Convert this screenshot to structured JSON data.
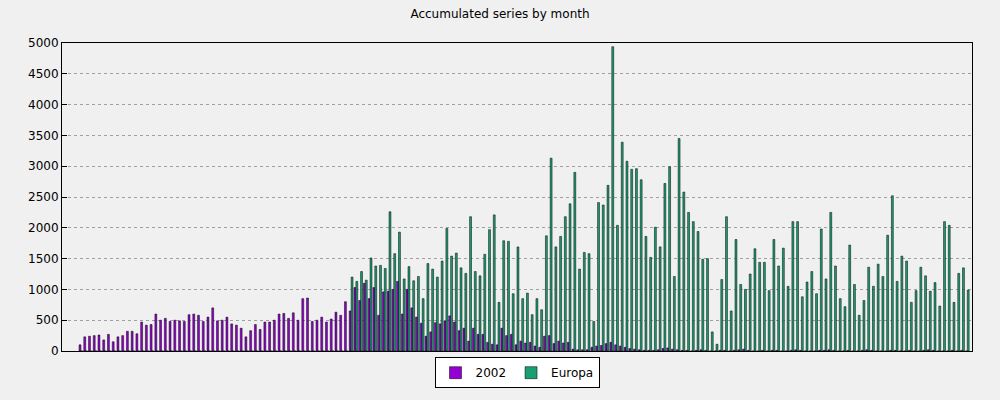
{
  "chart_data": {
    "type": "bar",
    "title": "Accumulated series by month",
    "categories": [
      null,
      null,
      null,
      null,
      null,
      null,
      null,
      null,
      null,
      null,
      null,
      null,
      null,
      null,
      null,
      null,
      null,
      null,
      null,
      null,
      null,
      null,
      null,
      null,
      null,
      null,
      null,
      null,
      null,
      null,
      null,
      null,
      null,
      null,
      null,
      null,
      null,
      null,
      null,
      null,
      null,
      null,
      null,
      null,
      null,
      null,
      null,
      null,
      null,
      null,
      null,
      null,
      null,
      null,
      null,
      null,
      null,
      null,
      null,
      null,
      null,
      null,
      null,
      null,
      null,
      null,
      null,
      null,
      null,
      null,
      null,
      null,
      null,
      null,
      null,
      null,
      null,
      null,
      null,
      null,
      null,
      null,
      null,
      null,
      null,
      null,
      null,
      null,
      null,
      null,
      null,
      null,
      null,
      null,
      null,
      null,
      null,
      null,
      null,
      null,
      null,
      null,
      null,
      null,
      null,
      null,
      null,
      null,
      null,
      null,
      null,
      null,
      null,
      null,
      null,
      null,
      null,
      null,
      null,
      null,
      null,
      null,
      null,
      null,
      null,
      null,
      null,
      null,
      null,
      null,
      null,
      null,
      null,
      null,
      null,
      null,
      null,
      null,
      null,
      null,
      null,
      null,
      null,
      null,
      null,
      null,
      null,
      null,
      null,
      null,
      null,
      null,
      null,
      null,
      null,
      null,
      null,
      null,
      null,
      null,
      null,
      null,
      null,
      null,
      null,
      null,
      null,
      null,
      null,
      null,
      null,
      null,
      null,
      null,
      null,
      null,
      null,
      null,
      null,
      null,
      null,
      null,
      null,
      null,
      null,
      null,
      null,
      null
    ],
    "series": [
      {
        "name": "2002",
        "color": "#9400d3",
        "values": [
          100,
          230,
          240,
          250,
          260,
          180,
          270,
          150,
          230,
          250,
          320,
          320,
          280,
          470,
          420,
          430,
          600,
          500,
          530,
          480,
          500,
          490,
          480,
          590,
          600,
          580,
          480,
          550,
          700,
          490,
          500,
          550,
          440,
          420,
          370,
          230,
          330,
          430,
          350,
          470,
          470,
          500,
          600,
          610,
          530,
          620,
          500,
          850,
          860,
          480,
          500,
          550,
          470,
          520,
          630,
          580,
          800,
          650,
          1030,
          820,
          1100,
          850,
          1030,
          580,
          960,
          970,
          1000,
          1130,
          600,
          1000,
          700,
          550,
          450,
          240,
          310,
          460,
          440,
          490,
          570,
          470,
          330,
          370,
          160,
          370,
          270,
          270,
          140,
          110,
          100,
          370,
          250,
          270,
          100,
          160,
          130,
          140,
          80,
          60,
          240,
          250,
          120,
          160,
          130,
          140,
          30,
          20,
          20,
          20,
          60,
          80,
          90,
          120,
          140,
          100,
          80,
          60,
          40,
          30,
          20,
          10,
          10,
          10,
          20,
          40,
          50,
          30,
          20,
          10,
          10,
          0,
          10,
          20,
          10,
          0,
          0,
          10,
          10,
          0,
          10,
          20,
          30,
          10,
          0,
          0,
          10,
          0,
          10,
          10,
          0,
          0,
          10,
          20,
          10,
          0,
          0,
          0,
          10,
          10,
          20,
          10,
          0,
          0,
          10,
          0,
          0,
          10,
          20,
          10,
          0,
          0,
          0,
          10,
          10,
          0,
          0,
          10,
          0,
          0,
          10,
          20,
          10,
          0,
          0,
          0,
          10,
          0,
          10,
          0
        ]
      },
      {
        "name": "Europa",
        "color": "#1a9e73",
        "values": [
          0,
          0,
          0,
          0,
          0,
          0,
          0,
          0,
          0,
          0,
          0,
          0,
          0,
          0,
          0,
          0,
          0,
          0,
          0,
          0,
          0,
          0,
          0,
          0,
          0,
          0,
          0,
          0,
          0,
          0,
          0,
          0,
          0,
          0,
          0,
          0,
          0,
          0,
          0,
          0,
          0,
          0,
          0,
          0,
          0,
          0,
          0,
          0,
          0,
          0,
          0,
          0,
          0,
          0,
          0,
          0,
          0,
          1200,
          1130,
          1290,
          1150,
          1510,
          1380,
          1390,
          1340,
          2260,
          1580,
          1930,
          1170,
          1370,
          1140,
          1210,
          850,
          1420,
          1330,
          1200,
          1460,
          1990,
          1540,
          1590,
          1350,
          1260,
          2180,
          1290,
          1220,
          1570,
          1970,
          2210,
          790,
          1790,
          1780,
          930,
          1690,
          850,
          940,
          590,
          850,
          670,
          1870,
          3130,
          1690,
          1860,
          2180,
          2390,
          2900,
          1330,
          1600,
          1580,
          480,
          2410,
          2370,
          2690,
          4940,
          2040,
          3390,
          3080,
          2950,
          2960,
          2780,
          1860,
          1520,
          2010,
          1690,
          2720,
          2990,
          1210,
          3450,
          2580,
          2250,
          2100,
          1940,
          1490,
          1500,
          310,
          110,
          1160,
          2180,
          650,
          1810,
          1080,
          1000,
          1250,
          1660,
          1440,
          1440,
          980,
          1810,
          1380,
          1670,
          1050,
          2100,
          2100,
          880,
          1120,
          1290,
          930,
          1980,
          1170,
          2250,
          1380,
          850,
          720,
          1720,
          1080,
          580,
          820,
          1360,
          1050,
          1410,
          1210,
          1880,
          2520,
          1130,
          1540,
          1460,
          790,
          980,
          1360,
          1220,
          970,
          1110,
          730,
          2100,
          2040,
          790,
          1260,
          1350,
          990
        ]
      }
    ],
    "ylim": [
      0,
      5000
    ],
    "yticks": [
      0,
      500,
      1000,
      1500,
      2000,
      2500,
      3000,
      3500,
      4000,
      4500,
      5000
    ],
    "grid": true,
    "legend": "bottom",
    "tick_labels": "y"
  }
}
